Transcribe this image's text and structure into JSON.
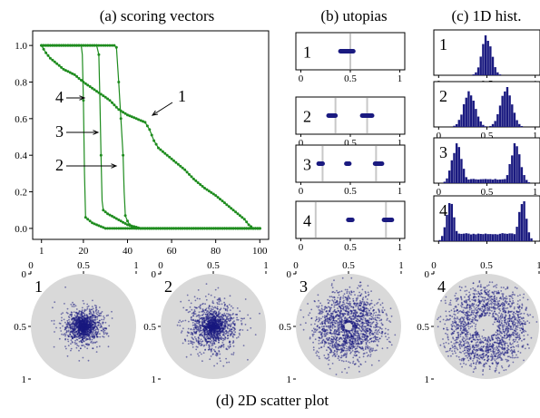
{
  "titles": {
    "a": "(a) scoring vectors",
    "b": "(b) utopias",
    "c": "(c) 1D hist.",
    "d": "(d) 2D scatter plot"
  },
  "colors": {
    "line": "#1e8c1e",
    "marker": "#1a1a80",
    "disk": "#d9d9d9",
    "gridline": "#c8c8c8"
  },
  "chart_data": [
    {
      "id": "scoring-vectors",
      "type": "line",
      "title": "(a) scoring vectors",
      "xlim": [
        1,
        100
      ],
      "ylim": [
        0.0,
        1.0
      ],
      "xticks": [
        1,
        20,
        40,
        60,
        80,
        100
      ],
      "yticks": [
        0.0,
        0.2,
        0.4,
        0.6,
        0.8,
        1.0
      ],
      "series": [
        {
          "name": "1",
          "keypoints": [
            [
              1,
              1.0
            ],
            [
              2,
              0.98
            ],
            [
              3,
              0.96
            ],
            [
              5,
              0.93
            ],
            [
              8,
              0.9
            ],
            [
              11,
              0.87
            ],
            [
              16,
              0.84
            ],
            [
              20,
              0.8
            ],
            [
              26,
              0.75
            ],
            [
              32,
              0.7
            ],
            [
              36,
              0.65
            ],
            [
              40,
              0.62
            ],
            [
              44,
              0.6
            ],
            [
              48,
              0.58
            ],
            [
              50,
              0.54
            ],
            [
              52,
              0.48
            ],
            [
              54,
              0.44
            ],
            [
              58,
              0.4
            ],
            [
              62,
              0.36
            ],
            [
              66,
              0.32
            ],
            [
              70,
              0.27
            ],
            [
              75,
              0.22
            ],
            [
              80,
              0.18
            ],
            [
              85,
              0.13
            ],
            [
              89,
              0.09
            ],
            [
              93,
              0.05
            ],
            [
              95,
              0.02
            ],
            [
              97,
              0.0
            ],
            [
              100,
              0.0
            ]
          ]
        },
        {
          "name": "2",
          "keypoints": [
            [
              1,
              1.0
            ],
            [
              34,
              1.0
            ],
            [
              35,
              0.99
            ],
            [
              36,
              0.8
            ],
            [
              37,
              0.6
            ],
            [
              38,
              0.4
            ],
            [
              38.5,
              0.2
            ],
            [
              39,
              0.07
            ],
            [
              40,
              0.04
            ],
            [
              41,
              0.02
            ],
            [
              42,
              0.01
            ],
            [
              44,
              0.0
            ],
            [
              100,
              0.0
            ]
          ]
        },
        {
          "name": "3",
          "keypoints": [
            [
              1,
              1.0
            ],
            [
              26,
              1.0
            ],
            [
              27,
              0.95
            ],
            [
              27.5,
              0.7
            ],
            [
              28,
              0.4
            ],
            [
              28.5,
              0.15
            ],
            [
              29,
              0.1
            ],
            [
              31,
              0.08
            ],
            [
              34,
              0.06
            ],
            [
              37,
              0.04
            ],
            [
              40,
              0.02
            ],
            [
              43,
              0.01
            ],
            [
              46,
              0.0
            ],
            [
              100,
              0.0
            ]
          ]
        },
        {
          "name": "4",
          "keypoints": [
            [
              1,
              1.0
            ],
            [
              19,
              1.0
            ],
            [
              19.5,
              0.95
            ],
            [
              20,
              0.7
            ],
            [
              20.5,
              0.3
            ],
            [
              21,
              0.06
            ],
            [
              22,
              0.05
            ],
            [
              24,
              0.03
            ],
            [
              26,
              0.02
            ],
            [
              28,
              0.01
            ],
            [
              30,
              0.0
            ],
            [
              100,
              0.0
            ]
          ]
        }
      ],
      "annotations": [
        "1",
        "2",
        "3",
        "4"
      ]
    },
    {
      "id": "utopias",
      "type": "scatter",
      "title": "(b) utopias",
      "xlim": [
        0,
        1
      ],
      "xticks": [
        0,
        0.5,
        1
      ],
      "panels": [
        {
          "label": "1",
          "clusters": [
            [
              0.4,
              0.53
            ]
          ],
          "gridlines": [
            0.5
          ]
        },
        {
          "label": "2",
          "clusters": [
            [
              0.28,
              0.35
            ],
            [
              0.62,
              0.72
            ]
          ],
          "gridlines": [
            0.35,
            0.67
          ]
        },
        {
          "label": "3",
          "clusters": [
            [
              0.18,
              0.22
            ],
            [
              0.46,
              0.49
            ],
            [
              0.75,
              0.82
            ]
          ],
          "gridlines": [
            0.22,
            0.76
          ]
        },
        {
          "label": "4",
          "clusters": [
            [
              0.48,
              0.52
            ],
            [
              0.84,
              0.92
            ]
          ],
          "gridlines": [
            0.15,
            0.86
          ]
        }
      ]
    },
    {
      "id": "histograms",
      "type": "bar",
      "title": "(c) 1D hist.",
      "xlim": [
        0,
        1
      ],
      "xticks": [
        0,
        0.5,
        1
      ],
      "panels": [
        {
          "label": "1",
          "modes": [
            {
              "center": 0.5,
              "sd": 0.05,
              "weight": 1.0
            }
          ]
        },
        {
          "label": "2",
          "modes": [
            {
              "center": 0.32,
              "sd": 0.06,
              "weight": 0.9
            },
            {
              "center": 0.7,
              "sd": 0.06,
              "weight": 1.0
            }
          ]
        },
        {
          "label": "3",
          "modes": [
            {
              "center": 0.19,
              "sd": 0.05,
              "weight": 1.0
            },
            {
              "center": 0.8,
              "sd": 0.05,
              "weight": 1.0
            }
          ],
          "floor": 0.1
        },
        {
          "label": "4",
          "modes": [
            {
              "center": 0.12,
              "sd": 0.04,
              "weight": 1.0
            },
            {
              "center": 0.87,
              "sd": 0.04,
              "weight": 1.0
            }
          ],
          "floor": 0.18
        }
      ]
    },
    {
      "id": "scatter-2d",
      "type": "scatter",
      "title": "(d) 2D scatter plot",
      "xlim": [
        0,
        1
      ],
      "ylim": [
        0,
        1
      ],
      "xticks": [
        0,
        0.5,
        1
      ],
      "yticks": [
        0,
        0.5,
        1
      ],
      "panels": [
        {
          "label": "1",
          "ring_radius": 0.0,
          "spread": 0.17,
          "hole": 0.0
        },
        {
          "label": "2",
          "ring_radius": 0.0,
          "spread": 0.23,
          "hole": 0.0
        },
        {
          "label": "3",
          "ring_radius": 0.2,
          "spread": 0.1,
          "hole": 0.04
        },
        {
          "label": "4",
          "ring_radius": 0.27,
          "spread": 0.09,
          "hole": 0.1
        }
      ]
    }
  ]
}
